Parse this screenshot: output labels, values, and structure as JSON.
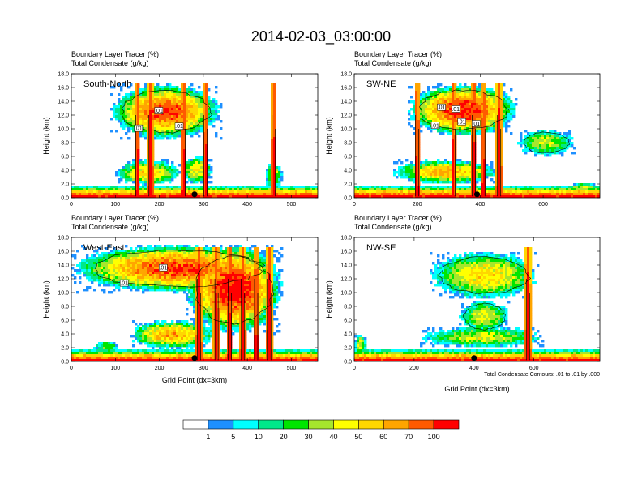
{
  "title": "2014-02-03_03:00:00",
  "chart_data": [
    {
      "type": "heatmap",
      "panel": "South-North",
      "header_lines": [
        "Boundary Layer Tracer   (%)",
        "Total Condensate   (g/kg)"
      ],
      "ylabel": "Height (km)",
      "xlabel": "",
      "xlim": [
        0,
        560
      ],
      "ylim": [
        0,
        18
      ],
      "xticks": [
        0,
        100,
        200,
        300,
        400,
        500
      ],
      "yticks": [
        "0.0",
        "2.0",
        "4.0",
        "6.0",
        "8.0",
        "10.0",
        "12.0",
        "14.0",
        "16.0",
        "18.0"
      ],
      "contour_labels": [
        ".01",
        ".01",
        ".01"
      ],
      "dots": [
        280
      ],
      "towers": [
        150,
        180,
        255,
        305,
        460
      ],
      "anvils": [
        [
          90,
          340,
          8.5,
          16.5,
          0.85
        ]
      ],
      "midclouds": [
        [
          100,
          250,
          1.8,
          5.5,
          0.6
        ],
        [
          250,
          320,
          2,
          6,
          0.55
        ],
        [
          440,
          480,
          1.5,
          5,
          0.5
        ]
      ],
      "note": ""
    },
    {
      "type": "heatmap",
      "panel": "SW-NE",
      "header_lines": [
        "Boundary Layer Tracer   (%)",
        "Total Condensate   (g/kg)"
      ],
      "ylabel": "Height (km)",
      "xlabel": "",
      "xlim": [
        0,
        780
      ],
      "ylim": [
        0,
        18
      ],
      "xticks": [
        0,
        200,
        400,
        600
      ],
      "yticks": [
        "0.0",
        "2.0",
        "4.0",
        "6.0",
        "8.0",
        "10.0",
        "12.0",
        "14.0",
        "16.0",
        "18.0"
      ],
      "contour_labels": [
        ".01",
        ".01",
        ".01",
        ".01",
        ".01"
      ],
      "dots": [
        390
      ],
      "towers": [
        200,
        315,
        380,
        410,
        460
      ],
      "anvils": [
        [
          170,
          520,
          9,
          16.5,
          0.9
        ],
        [
          520,
          700,
          6,
          10,
          0.45
        ]
      ],
      "midclouds": [
        [
          120,
          460,
          2,
          5.5,
          0.7
        ],
        [
          680,
          780,
          0.8,
          2.2,
          0.5
        ]
      ],
      "note": ""
    },
    {
      "type": "heatmap",
      "panel": "West-East",
      "header_lines": [
        "Boundary Layer Tracer   (%)",
        "Total Condensate   (g/kg)"
      ],
      "ylabel": "Height (km)",
      "xlabel": "Grid Point (dx=3km)",
      "xlim": [
        0,
        560
      ],
      "ylim": [
        0,
        18
      ],
      "xticks": [
        0,
        100,
        200,
        300,
        400,
        500
      ],
      "yticks": [
        "0.0",
        "2.0",
        "4.0",
        "6.0",
        "8.0",
        "10.0",
        "12.0",
        "14.0",
        "16.0",
        "18.0"
      ],
      "contour_labels": [
        ".01",
        ".01"
      ],
      "dots": [
        280
      ],
      "towers": [
        290,
        330,
        360,
        390,
        420,
        450
      ],
      "anvils": [
        [
          0,
          480,
          10,
          17,
          0.85
        ],
        [
          260,
          480,
          4,
          17,
          0.95
        ]
      ],
      "midclouds": [
        [
          130,
          330,
          1.8,
          6,
          0.7
        ],
        [
          50,
          110,
          1.2,
          3,
          0.4
        ]
      ],
      "note": ""
    },
    {
      "type": "heatmap",
      "panel": "NW-SE",
      "header_lines": [
        "Boundary Layer Tracer   (%)",
        "Total Condensate   (g/kg)"
      ],
      "ylabel": "Height (km)",
      "xlabel": "Grid Point (dx=3km)",
      "xlim": [
        0,
        820
      ],
      "ylim": [
        0,
        18
      ],
      "xticks": [
        0,
        200,
        400,
        600
      ],
      "yticks": [
        "0.0",
        "2.0",
        "4.0",
        "6.0",
        "8.0",
        "10.0",
        "12.0",
        "14.0",
        "16.0",
        "18.0"
      ],
      "contour_labels": [],
      "dots": [
        400
      ],
      "towers": [
        580
      ],
      "anvils": [
        [
          250,
          620,
          9,
          16,
          0.6
        ],
        [
          350,
          520,
          4,
          9,
          0.5
        ]
      ],
      "midclouds": [
        [
          220,
          640,
          2,
          5,
          0.5
        ],
        [
          0,
          40,
          1,
          4,
          0.5
        ]
      ],
      "note": "Total Condensate Contours: .01 to .01 by .000"
    }
  ],
  "colorbar": {
    "labels": [
      "1",
      "5",
      "10",
      "20",
      "30",
      "40",
      "50",
      "60",
      "70",
      "100"
    ],
    "colors": [
      "#ffffff",
      "#1e90ff",
      "#00ffff",
      "#00e88a",
      "#00e600",
      "#a6e62d",
      "#ffff00",
      "#ffd700",
      "#ffa500",
      "#ff5a00",
      "#ff0000"
    ]
  }
}
